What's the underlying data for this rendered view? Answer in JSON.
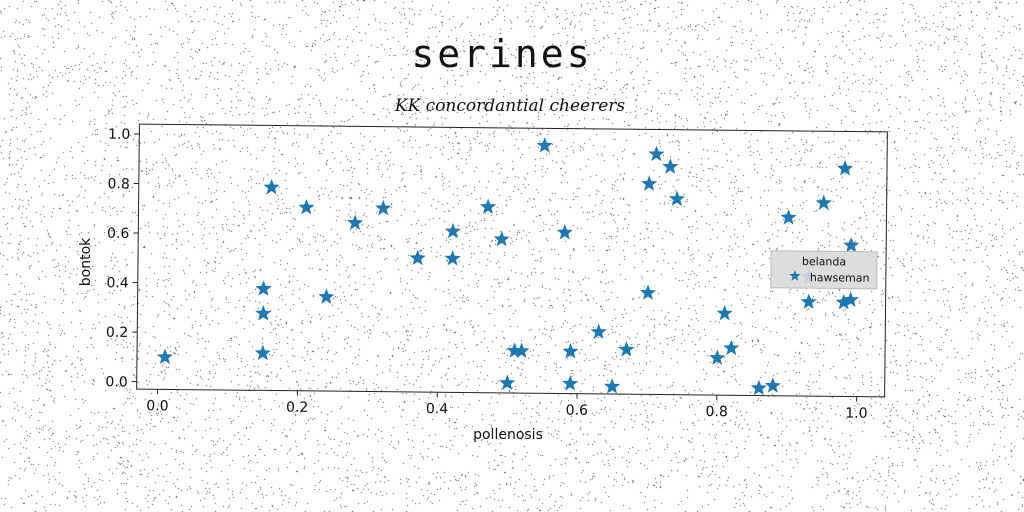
{
  "title": "serines",
  "subtitle": "KK concordantial cheerers",
  "chart_data": {
    "type": "scatter",
    "xlabel": "pollenosis",
    "ylabel": "bontok",
    "xlim": [
      -0.03,
      1.04
    ],
    "ylim": [
      -0.03,
      1.04
    ],
    "xticks": [
      "0.0",
      "0.2",
      "0.4",
      "0.6",
      "0.8",
      "1.0"
    ],
    "yticks": [
      "0.0",
      "0.2",
      "0.4",
      "0.6",
      "0.8",
      "1.0"
    ],
    "grid": false,
    "legend": {
      "title": "belanda",
      "placement": "right",
      "entries": [
        "hawseman"
      ]
    },
    "series": [
      {
        "name": "hawseman",
        "marker": "star",
        "color": "#1f77b4",
        "points": [
          [
            0.01,
            0.1
          ],
          [
            0.15,
            0.12
          ],
          [
            0.15,
            0.28
          ],
          [
            0.15,
            0.38
          ],
          [
            0.16,
            0.79
          ],
          [
            0.21,
            0.71
          ],
          [
            0.24,
            0.35
          ],
          [
            0.28,
            0.65
          ],
          [
            0.32,
            0.71
          ],
          [
            0.37,
            0.51
          ],
          [
            0.42,
            0.51
          ],
          [
            0.42,
            0.62
          ],
          [
            0.47,
            0.72
          ],
          [
            0.49,
            0.59
          ],
          [
            0.5,
            0.01
          ],
          [
            0.51,
            0.14
          ],
          [
            0.52,
            0.14
          ],
          [
            0.55,
            0.97
          ],
          [
            0.58,
            0.62
          ],
          [
            0.59,
            0.01
          ],
          [
            0.59,
            0.14
          ],
          [
            0.63,
            0.22
          ],
          [
            0.65,
            0.0
          ],
          [
            0.67,
            0.15
          ],
          [
            0.7,
            0.38
          ],
          [
            0.7,
            0.82
          ],
          [
            0.71,
            0.94
          ],
          [
            0.73,
            0.89
          ],
          [
            0.74,
            0.76
          ],
          [
            0.8,
            0.12
          ],
          [
            0.81,
            0.3
          ],
          [
            0.82,
            0.16
          ],
          [
            0.86,
            0.0
          ],
          [
            0.88,
            0.01
          ],
          [
            0.9,
            0.69
          ],
          [
            0.93,
            0.35
          ],
          [
            0.93,
            0.45
          ],
          [
            0.95,
            0.75
          ],
          [
            0.98,
            0.89
          ],
          [
            0.98,
            0.35
          ],
          [
            0.99,
            0.36
          ],
          [
            0.99,
            0.58
          ]
        ]
      }
    ]
  }
}
